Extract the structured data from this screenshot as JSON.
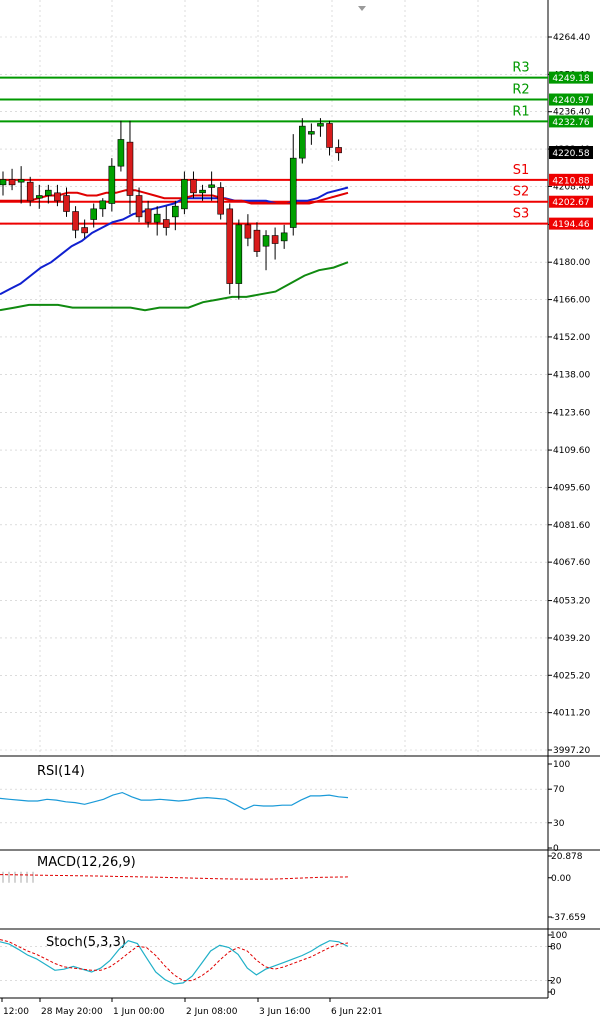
{
  "chart_data": {
    "type": "candlestick",
    "price_ylim": [
      3997.2,
      4278.8
    ],
    "price_ticks": [
      "4264.40",
      "4250.40",
      "4236.40",
      "4222.40",
      "4208.40",
      "4194.20",
      "4180.00",
      "4166.00",
      "4152.00",
      "4138.00",
      "4123.60",
      "4109.60",
      "4095.60",
      "4081.60",
      "4067.60",
      "4053.20",
      "4039.20",
      "4025.20",
      "4011.20",
      "3997.20"
    ],
    "current_price": "4220.58",
    "colors": {
      "bull_body": "#00a000",
      "bear_body": "#d81b1b",
      "wick": "#000000",
      "resistance": "#009900",
      "support": "#ee0000",
      "ma_fast": "#e00000",
      "ma_mid": "#1020d0",
      "ma_slow": "#108a10",
      "grid": "#c8c8c8",
      "rsi": "#1a9ad8",
      "stoch_main": "#20b0c8",
      "stoch_signal": "#e00000"
    },
    "levels": [
      {
        "name": "R3",
        "value": "4249.18",
        "type": "resistance"
      },
      {
        "name": "R2",
        "value": "4240.97",
        "type": "resistance"
      },
      {
        "name": "R1",
        "value": "4232.76",
        "type": "resistance"
      },
      {
        "name": "S1",
        "value": "4210.88",
        "type": "support"
      },
      {
        "name": "S2",
        "value": "4202.67",
        "type": "support"
      },
      {
        "name": "S3",
        "value": "4194.46",
        "type": "support"
      }
    ],
    "candles": [
      {
        "o": 4209,
        "h": 4214,
        "l": 4205,
        "c": 4211
      },
      {
        "o": 4211,
        "h": 4215,
        "l": 4207,
        "c": 4209
      },
      {
        "o": 4210,
        "h": 4216,
        "l": 4202,
        "c": 4211
      },
      {
        "o": 4210,
        "h": 4212,
        "l": 4201,
        "c": 4203
      },
      {
        "o": 4204,
        "h": 4209,
        "l": 4200,
        "c": 4205
      },
      {
        "o": 4205,
        "h": 4209,
        "l": 4202,
        "c": 4207
      },
      {
        "o": 4206,
        "h": 4209,
        "l": 4201,
        "c": 4203
      },
      {
        "o": 4205,
        "h": 4208,
        "l": 4197,
        "c": 4199
      },
      {
        "o": 4199,
        "h": 4201,
        "l": 4189,
        "c": 4192
      },
      {
        "o": 4193,
        "h": 4196,
        "l": 4189,
        "c": 4191
      },
      {
        "o": 4196,
        "h": 4202,
        "l": 4193,
        "c": 4200
      },
      {
        "o": 4200,
        "h": 4204,
        "l": 4197,
        "c": 4203
      },
      {
        "o": 4202,
        "h": 4219,
        "l": 4199,
        "c": 4216
      },
      {
        "o": 4216,
        "h": 4233,
        "l": 4214,
        "c": 4226
      },
      {
        "o": 4225,
        "h": 4233,
        "l": 4198,
        "c": 4205
      },
      {
        "o": 4205,
        "h": 4208,
        "l": 4195,
        "c": 4197
      },
      {
        "o": 4200,
        "h": 4203,
        "l": 4193,
        "c": 4195
      },
      {
        "o": 4195,
        "h": 4201,
        "l": 4190,
        "c": 4198
      },
      {
        "o": 4196,
        "h": 4201,
        "l": 4190,
        "c": 4193
      },
      {
        "o": 4197,
        "h": 4203,
        "l": 4192,
        "c": 4201
      },
      {
        "o": 4200,
        "h": 4214,
        "l": 4198,
        "c": 4211
      },
      {
        "o": 4211,
        "h": 4214,
        "l": 4204,
        "c": 4206
      },
      {
        "o": 4206,
        "h": 4209,
        "l": 4203,
        "c": 4207
      },
      {
        "o": 4208,
        "h": 4214,
        "l": 4203,
        "c": 4209
      },
      {
        "o": 4208,
        "h": 4210,
        "l": 4196,
        "c": 4198
      },
      {
        "o": 4200,
        "h": 4202,
        "l": 4168,
        "c": 4172
      },
      {
        "o": 4172,
        "h": 4196,
        "l": 4166,
        "c": 4194
      },
      {
        "o": 4194,
        "h": 4198,
        "l": 4186,
        "c": 4189
      },
      {
        "o": 4192,
        "h": 4195,
        "l": 4182,
        "c": 4184
      },
      {
        "o": 4186,
        "h": 4192,
        "l": 4177,
        "c": 4190
      },
      {
        "o": 4190,
        "h": 4193,
        "l": 4181,
        "c": 4187
      },
      {
        "o": 4188,
        "h": 4194,
        "l": 4185,
        "c": 4191
      },
      {
        "o": 4193,
        "h": 4228,
        "l": 4190,
        "c": 4219
      },
      {
        "o": 4219,
        "h": 4234,
        "l": 4217,
        "c": 4231
      },
      {
        "o": 4228,
        "h": 4232,
        "l": 4224,
        "c": 4229
      },
      {
        "o": 4231,
        "h": 4234,
        "l": 4227,
        "c": 4232
      },
      {
        "o": 4232,
        "h": 4233,
        "l": 4220,
        "c": 4223
      },
      {
        "o": 4223,
        "h": 4226,
        "l": 4218,
        "c": 4221
      }
    ],
    "ma_fast": [
      4203,
      4203,
      4203,
      4203,
      4204,
      4205,
      4205,
      4206,
      4206,
      4205,
      4205,
      4206,
      4206,
      4207,
      4207,
      4206,
      4205,
      4204,
      4204,
      4204,
      4205,
      4205,
      4205,
      4204,
      4203,
      4203,
      4202,
      4202,
      4202,
      4202,
      4202,
      4202,
      4202,
      4203,
      4204,
      4205,
      4206
    ],
    "ma_mid": [
      4168,
      4170,
      4172,
      4175,
      4178,
      4180,
      4183,
      4186,
      4188,
      4191,
      4193,
      4195,
      4196,
      4198,
      4199,
      4200,
      4201,
      4202,
      4204,
      4204,
      4204,
      4204,
      4204,
      4203,
      4203,
      4203,
      4203,
      4202,
      4202,
      4203,
      4203,
      4204,
      4206,
      4207,
      4208
    ],
    "ma_slow": [
      4162,
      4163,
      4164,
      4164,
      4164,
      4163,
      4163,
      4163,
      4163,
      4163,
      4162,
      4163,
      4163,
      4163,
      4165,
      4166,
      4167,
      4167,
      4168,
      4169,
      4172,
      4175,
      4177,
      4178,
      4180
    ],
    "time_labels": [
      "12:00",
      "28 May 20:00",
      "1 Jun 00:00",
      "2 Jun 08:00",
      "3 Jun 16:00",
      "6 Jun 22:01"
    ],
    "rsi": {
      "label": "RSI(14)",
      "ticks": [
        "100",
        "70",
        "30",
        "0"
      ],
      "values": [
        59,
        58,
        57,
        56,
        56,
        58,
        57,
        55,
        54,
        52,
        55,
        58,
        63,
        66,
        61,
        57,
        57,
        58,
        57,
        56,
        57,
        59,
        60,
        59,
        58,
        52,
        46,
        51,
        50,
        50,
        51,
        51,
        57,
        62,
        62,
        63,
        61,
        60
      ]
    },
    "macd": {
      "label": "MACD(12,26,9)",
      "ticks": [
        "20.878",
        "0.00",
        "-37.659"
      ],
      "signal": [
        3.0,
        2.8,
        2.6,
        2.4,
        2.2,
        2.0,
        1.8,
        1.5,
        1.2,
        0.9,
        0.6,
        0.3,
        0.0,
        -0.4,
        -0.8,
        -1.1,
        -1.3,
        -1.4,
        -1.3,
        -0.8,
        -0.2,
        0.3,
        0.6,
        0.8
      ]
    },
    "stoch": {
      "label": "Stoch(5,3,3)",
      "ticks": [
        "100",
        "80",
        "20",
        "0"
      ],
      "main": [
        88,
        84,
        75,
        65,
        58,
        48,
        38,
        40,
        45,
        40,
        35,
        42,
        55,
        75,
        90,
        85,
        60,
        35,
        22,
        14,
        16,
        28,
        50,
        72,
        82,
        78,
        66,
        42,
        30,
        40,
        46,
        52,
        58,
        64,
        72,
        82,
        90,
        88,
        80
      ],
      "signal": [
        92,
        88,
        80,
        72,
        66,
        58,
        50,
        44,
        42,
        40,
        38,
        38,
        44,
        55,
        68,
        80,
        78,
        64,
        46,
        30,
        20,
        20,
        28,
        40,
        56,
        70,
        78,
        72,
        56,
        44,
        40,
        44,
        50,
        56,
        62,
        70,
        78,
        84,
        86
      ]
    }
  }
}
